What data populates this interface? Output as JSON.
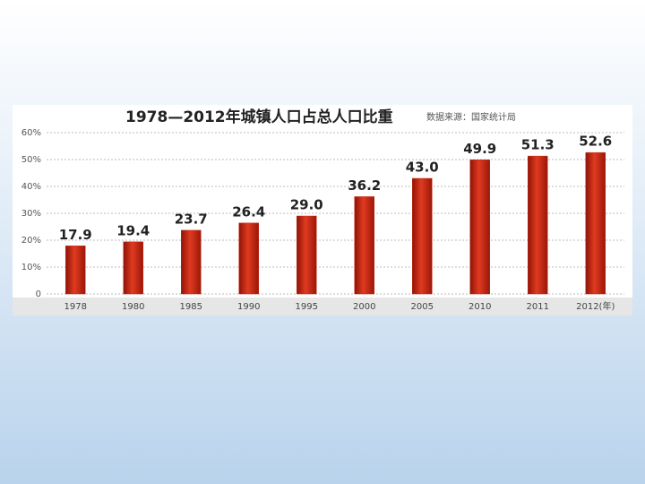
{
  "chart_data": {
    "type": "bar",
    "title": "1978—2012年城镇人口占总人口比重",
    "source": "数据来源：国家统计局",
    "categories": [
      "1978",
      "1980",
      "1985",
      "1990",
      "1995",
      "2000",
      "2005",
      "2010",
      "2011",
      "2012(年)"
    ],
    "values": [
      17.9,
      19.4,
      23.7,
      26.4,
      29.0,
      36.2,
      43.0,
      49.9,
      51.3,
      52.6
    ],
    "value_labels": [
      "17.9",
      "19.4",
      "23.7",
      "26.4",
      "29.0",
      "36.2",
      "43.0",
      "49.9",
      "51.3",
      "52.6"
    ],
    "color": "#c92a14",
    "ylim": [
      0,
      60
    ],
    "yticks": [
      0,
      {
        "value": 10,
        "label": "10%"
      },
      {
        "value": 20,
        "label": "20%"
      },
      {
        "value": 30,
        "label": "30%"
      },
      {
        "value": 40,
        "label": "40%"
      },
      {
        "value": 50,
        "label": "50%"
      },
      {
        "value": 60,
        "label": "60%"
      }
    ],
    "grid": true
  }
}
